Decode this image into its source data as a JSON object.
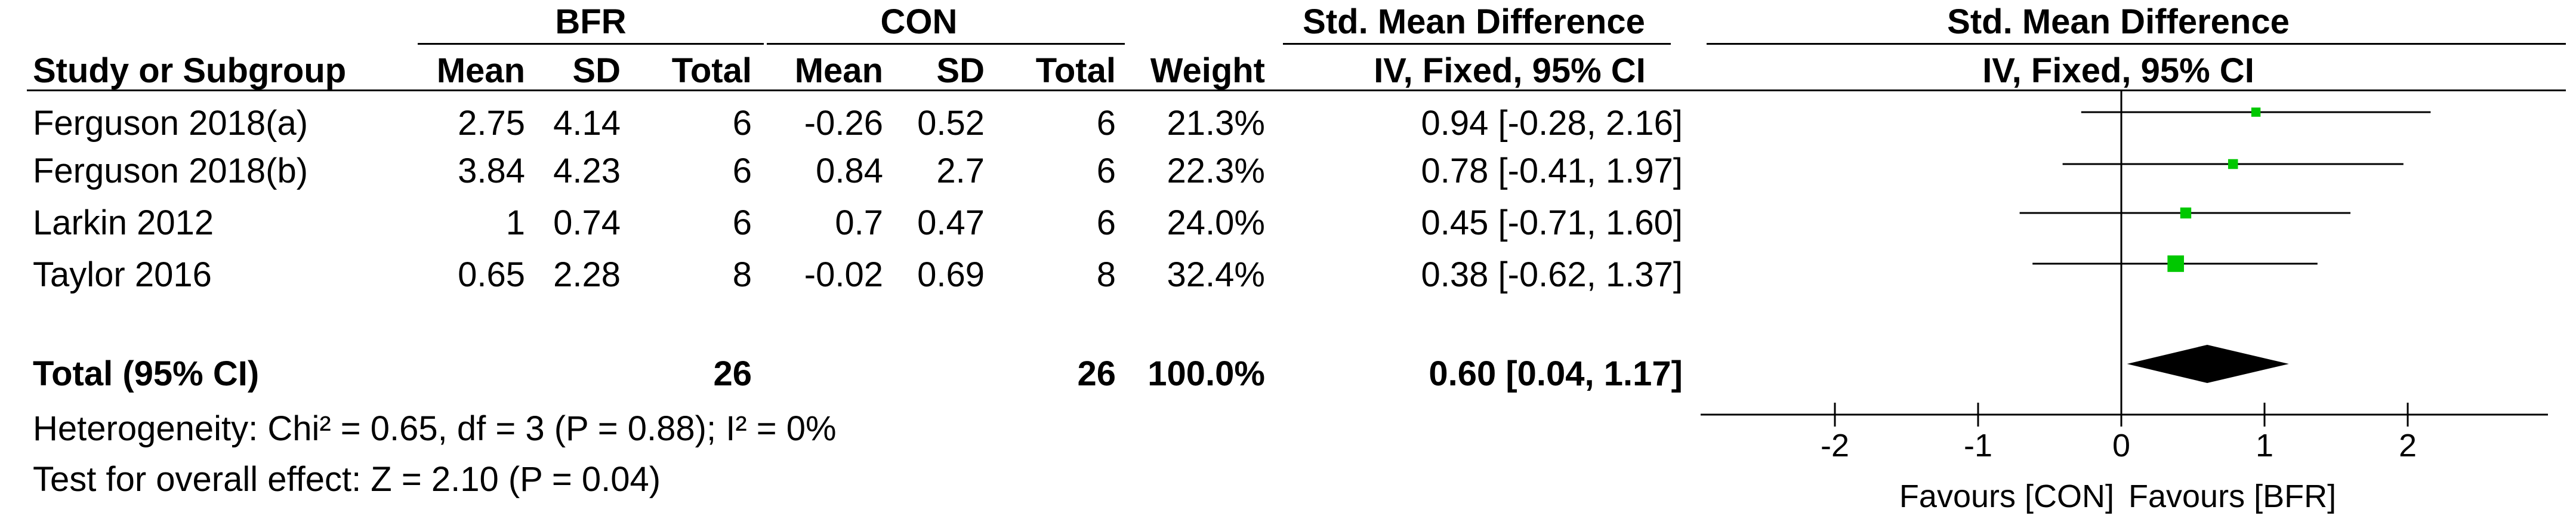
{
  "header": {
    "group1": "BFR",
    "group2": "CON",
    "effect_text_title": "Std. Mean Difference",
    "effect_text_method": "IV, Fixed, 95% CI",
    "plot_title": "Std. Mean Difference",
    "plot_method": "IV, Fixed, 95% CI",
    "col_study": "Study or Subgroup",
    "col_mean1": "Mean",
    "col_sd1": "SD",
    "col_total1": "Total",
    "col_mean2": "Mean",
    "col_sd2": "SD",
    "col_total2": "Total",
    "col_weight": "Weight"
  },
  "studies": [
    {
      "name": "Ferguson 2018(a)",
      "mean1": "2.75",
      "sd1": "4.14",
      "total1": "6",
      "mean2": "-0.26",
      "sd2": "0.52",
      "total2": "6",
      "weight": "21.3%",
      "ci_text": "0.94 [-0.28, 2.16]"
    },
    {
      "name": "Ferguson 2018(b)",
      "mean1": "3.84",
      "sd1": "4.23",
      "total1": "6",
      "mean2": "0.84",
      "sd2": "2.7",
      "total2": "6",
      "weight": "22.3%",
      "ci_text": "0.78 [-0.41, 1.97]"
    },
    {
      "name": "Larkin 2012",
      "mean1": "1",
      "sd1": "0.74",
      "total1": "6",
      "mean2": "0.7",
      "sd2": "0.47",
      "total2": "6",
      "weight": "24.0%",
      "ci_text": "0.45 [-0.71, 1.60]"
    },
    {
      "name": "Taylor 2016",
      "mean1": "0.65",
      "sd1": "2.28",
      "total1": "8",
      "mean2": "-0.02",
      "sd2": "0.69",
      "total2": "8",
      "weight": "32.4%",
      "ci_text": "0.38 [-0.62, 1.37]"
    }
  ],
  "total": {
    "label": "Total (95% CI)",
    "total1": "26",
    "total2": "26",
    "weight": "100.0%",
    "ci_text": "0.60 [0.04, 1.17]"
  },
  "footer": {
    "heterogeneity": "Heterogeneity: Chi² = 0.65, df = 3 (P = 0.88); I² = 0%",
    "overall": "Test for overall effect: Z = 2.10 (P = 0.04)"
  },
  "axis": {
    "favours_left": "Favours [CON]",
    "favours_right": "Favours [BFR]"
  },
  "colors": {
    "marker": "#00c800",
    "diamond": "#000000",
    "line": "#000000"
  },
  "chart_data": {
    "type": "scatter",
    "title": "Std. Mean Difference",
    "xlabel": "",
    "ylabel": "",
    "xlim": [
      -2,
      2
    ],
    "x_ticks": [
      -2,
      -1,
      0,
      1,
      2
    ],
    "categories": [
      "Ferguson 2018(a)",
      "Ferguson 2018(b)",
      "Larkin 2012",
      "Taylor 2016"
    ],
    "points": [
      {
        "study": "Ferguson 2018(a)",
        "estimate": 0.94,
        "lower": -0.28,
        "upper": 2.16,
        "weight": 21.3
      },
      {
        "study": "Ferguson 2018(b)",
        "estimate": 0.78,
        "lower": -0.41,
        "upper": 1.97,
        "weight": 22.3
      },
      {
        "study": "Larkin 2012",
        "estimate": 0.45,
        "lower": -0.71,
        "upper": 1.6,
        "weight": 24.0
      },
      {
        "study": "Taylor 2016",
        "estimate": 0.38,
        "lower": -0.62,
        "upper": 1.37,
        "weight": 32.4
      }
    ],
    "pooled": {
      "estimate": 0.6,
      "lower": 0.04,
      "upper": 1.17
    },
    "grid": false
  }
}
